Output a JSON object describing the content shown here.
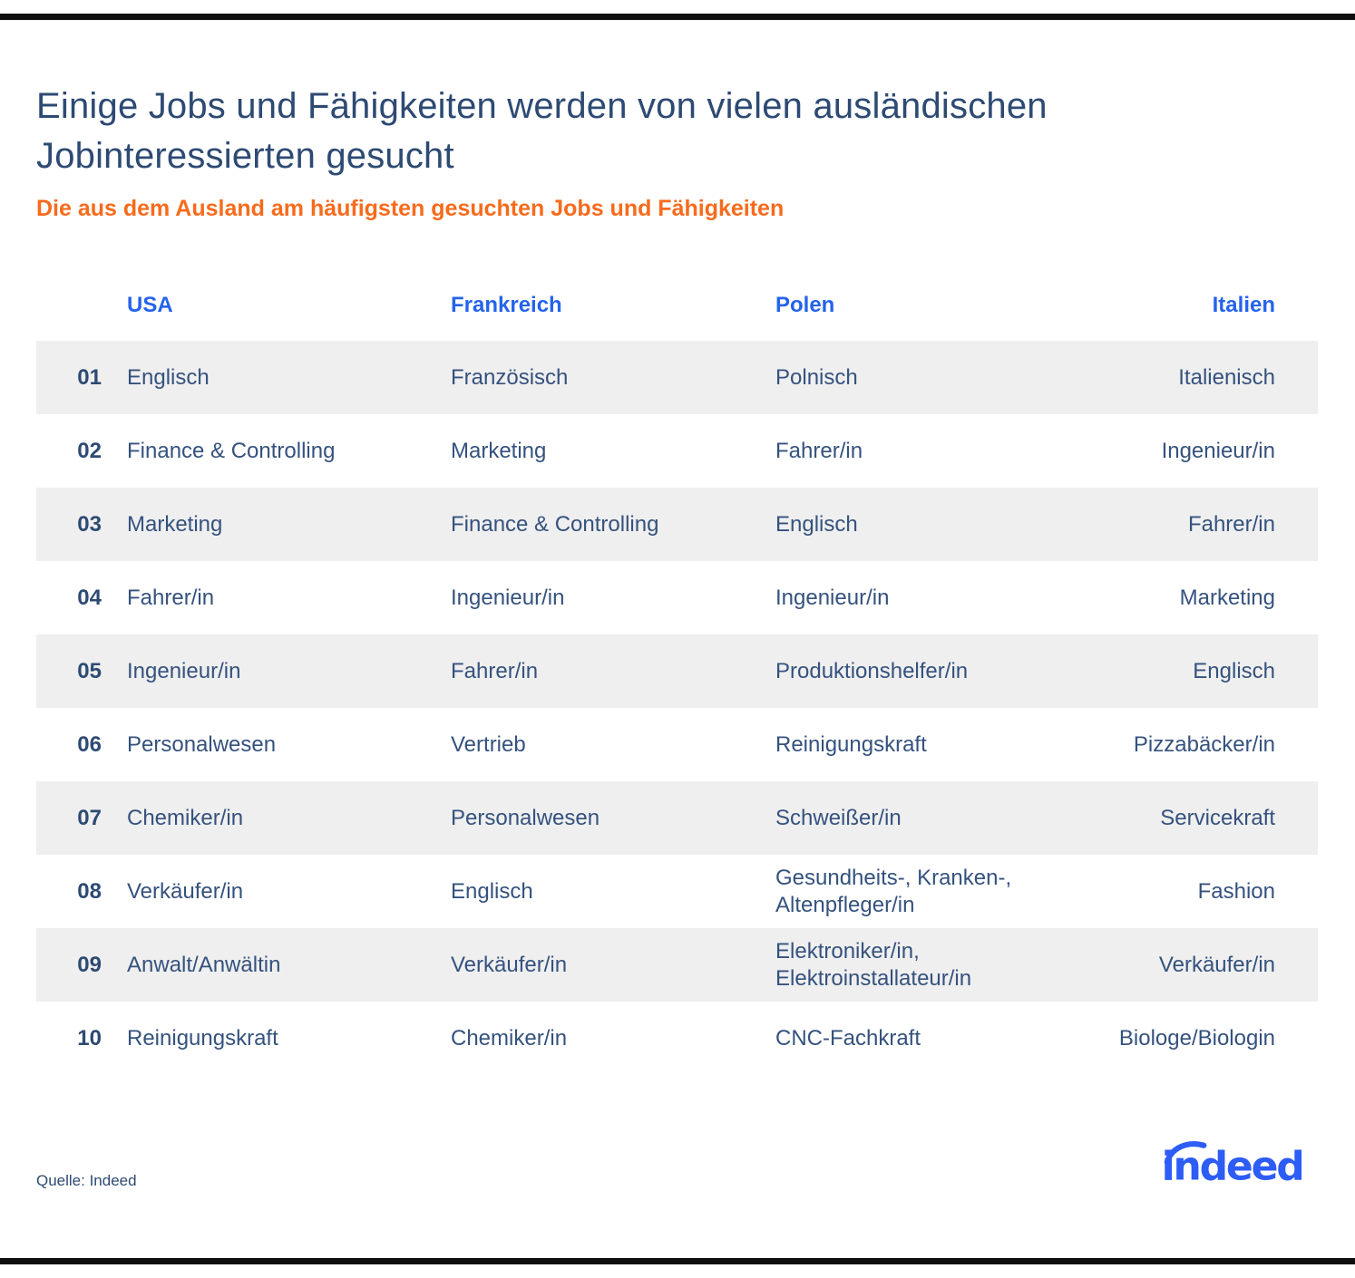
{
  "page": {
    "title": "Einige Jobs und Fähigkeiten werden von vielen ausländischen Jobinteressierten gesucht",
    "subtitle": "Die aus dem Ausland am häufigsten gesuchten Jobs und Fähigkeiten",
    "source": "Quelle: Indeed",
    "brand": "indeed"
  },
  "colors": {
    "title_navy": "#2d4a73",
    "cell_navy": "#35527e",
    "header_blue": "#2563eb",
    "logo_blue": "#2d5cf6",
    "subtitle_orange": "#f76b1c",
    "row_stripe_gray": "#efefef",
    "frame_bar_black": "#0f0f0f"
  },
  "chart_data": {
    "type": "table",
    "title": "Einige Jobs und Fähigkeiten werden von vielen ausländischen Jobinteressierten gesucht",
    "subtitle": "Die aus dem Ausland am häufigsten gesuchten Jobs und Fähigkeiten",
    "columns": [
      "USA",
      "Frankreich",
      "Polen",
      "Italien"
    ],
    "rank_column_values": [
      "01",
      "02",
      "03",
      "04",
      "05",
      "06",
      "07",
      "08",
      "09",
      "10"
    ],
    "rows": [
      {
        "rank": "01",
        "usa": "Englisch",
        "frankreich": "Französisch",
        "polen": "Polnisch",
        "italien": "Italienisch"
      },
      {
        "rank": "02",
        "usa": "Finance & Controlling",
        "frankreich": "Marketing",
        "polen": "Fahrer/in",
        "italien": "Ingenieur/in"
      },
      {
        "rank": "03",
        "usa": "Marketing",
        "frankreich": "Finance & Controlling",
        "polen": "Englisch",
        "italien": "Fahrer/in"
      },
      {
        "rank": "04",
        "usa": "Fahrer/in",
        "frankreich": "Ingenieur/in",
        "polen": "Ingenieur/in",
        "italien": "Marketing"
      },
      {
        "rank": "05",
        "usa": "Ingenieur/in",
        "frankreich": "Fahrer/in",
        "polen": "Produktionshelfer/in",
        "italien": "Englisch"
      },
      {
        "rank": "06",
        "usa": "Personalwesen",
        "frankreich": "Vertrieb",
        "polen": "Reinigungskraft",
        "italien": "Pizzabäcker/in"
      },
      {
        "rank": "07",
        "usa": "Chemiker/in",
        "frankreich": "Personalwesen",
        "polen": "Schweißer/in",
        "italien": "Servicekraft"
      },
      {
        "rank": "08",
        "usa": "Verkäufer/in",
        "frankreich": "Englisch",
        "polen": "Gesundheits-, Kranken-, Altenpfleger/in",
        "italien": "Fashion"
      },
      {
        "rank": "09",
        "usa": "Anwalt/Anwältin",
        "frankreich": "Verkäufer/in",
        "polen": "Elektroniker/in, Elektroinstallateur/in",
        "italien": "Verkäufer/in"
      },
      {
        "rank": "10",
        "usa": "Reinigungskraft",
        "frankreich": "Chemiker/in",
        "polen": "CNC-Fachkraft",
        "italien": "Biologe/Biologin"
      }
    ],
    "layout": {
      "striped_rows": "odd rows gray starting at rank 01",
      "italien_column_alignment": "right",
      "grid": false,
      "legend": false
    }
  }
}
